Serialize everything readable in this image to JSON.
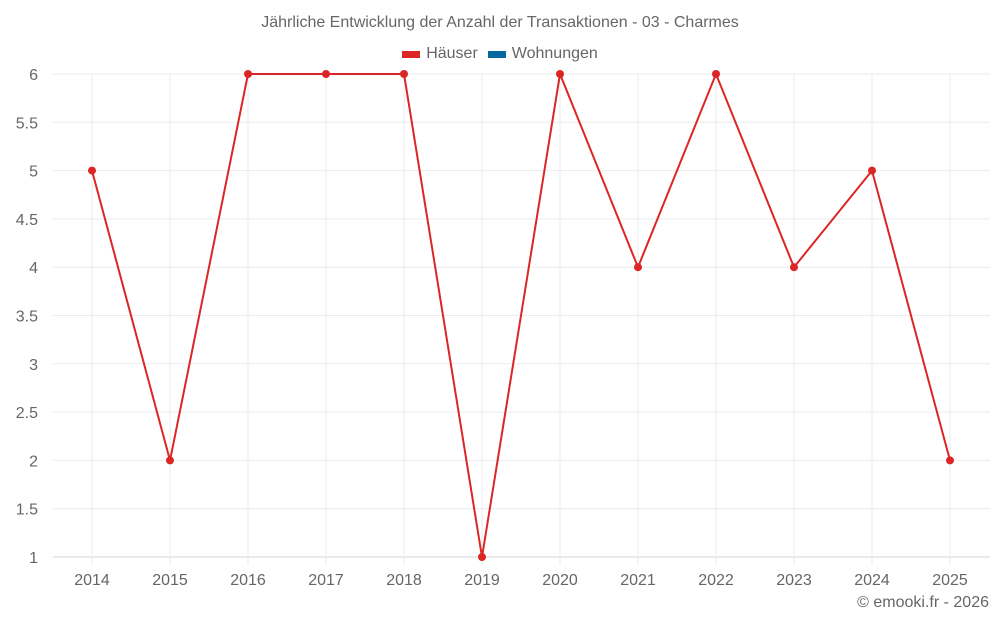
{
  "chart_data": {
    "type": "line",
    "title": "Jährliche Entwicklung der Anzahl der Transaktionen - 03 - Charmes",
    "categories": [
      "2014",
      "2015",
      "2016",
      "2017",
      "2018",
      "2019",
      "2020",
      "2021",
      "2022",
      "2023",
      "2024",
      "2025"
    ],
    "series": [
      {
        "name": "Häuser",
        "color": "#dc2626",
        "values": [
          5,
          2,
          6,
          6,
          6,
          1,
          6,
          4,
          6,
          4,
          5,
          2
        ]
      },
      {
        "name": "Wohnungen",
        "color": "#0369a1",
        "values": []
      }
    ],
    "yticks": [
      1,
      1.5,
      2,
      2.5,
      3,
      3.5,
      4,
      4.5,
      5,
      5.5,
      6
    ],
    "ytick_labels": [
      "1",
      "1.5",
      "2",
      "2.5",
      "3",
      "3.5",
      "4",
      "4.5",
      "5",
      "5.5",
      "6"
    ],
    "ylim": [
      1,
      6
    ],
    "xlabel": "",
    "ylabel": "",
    "grid": true,
    "legend_position": "top"
  },
  "legend": [
    {
      "label": "Häuser",
      "color": "#dc2626"
    },
    {
      "label": "Wohnungen",
      "color": "#0369a1"
    }
  ],
  "credit": "© emooki.fr - 2026"
}
